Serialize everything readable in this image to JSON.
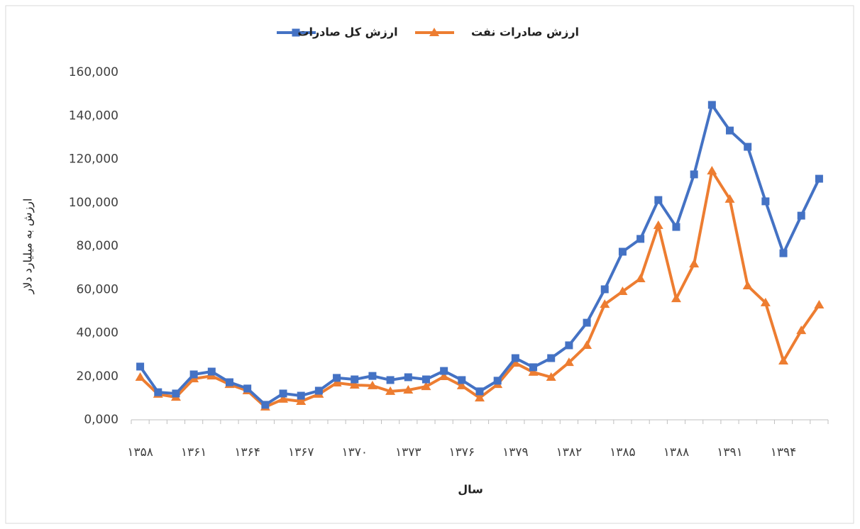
{
  "chart_data": {
    "type": "line",
    "x_label": "سال",
    "y_label": "ارزش به میلیارد دلار",
    "categories": [
      "۱۳۵۸",
      null,
      null,
      "۱۳۶۱",
      null,
      null,
      "۱۳۶۴",
      null,
      null,
      "۱۳۶۷",
      null,
      null,
      "۱۳۷۰",
      null,
      null,
      "۱۳۷۳",
      null,
      null,
      "۱۳۷۶",
      null,
      null,
      "۱۳۷۹",
      null,
      null,
      "۱۳۸۲",
      null,
      null,
      "۱۳۸۵",
      null,
      null,
      "۱۳۸۸",
      null,
      null,
      "۱۳۹۱",
      null,
      null,
      "۱۳۹۴",
      null,
      null
    ],
    "series": [
      {
        "name": "ارزش کل صادرات",
        "color": "#4472c4",
        "marker": "square",
        "values": [
          24500,
          12700,
          12100,
          20900,
          22200,
          17300,
          14400,
          6900,
          12100,
          11100,
          13400,
          19300,
          18600,
          20200,
          18300,
          19600,
          18600,
          22500,
          18300,
          13100,
          18000,
          28400,
          24200,
          28400,
          34300,
          44700,
          60100,
          77400,
          83300,
          101200,
          88800,
          113000,
          145000,
          133200,
          125700,
          100600,
          76700,
          94000,
          111000
        ]
      },
      {
        "name": "ارزش صادرات نفت",
        "color": "#ed7d31",
        "marker": "triangle",
        "values": [
          19600,
          11800,
          10400,
          18900,
          20200,
          16300,
          13400,
          5900,
          9500,
          8500,
          11800,
          17000,
          16000,
          15700,
          13100,
          13700,
          15300,
          19900,
          15700,
          10100,
          16300,
          26100,
          21900,
          19600,
          26400,
          34300,
          53200,
          59100,
          65000,
          89500,
          55800,
          71800,
          114600,
          101600,
          61700,
          53900,
          27100,
          41100,
          52900
        ]
      }
    ],
    "ylim": [
      0,
      160000
    ],
    "yticks": [
      {
        "value": 0,
        "label": "0,000"
      },
      {
        "value": 20000,
        "label": "20,000"
      },
      {
        "value": 40000,
        "label": "40,000"
      },
      {
        "value": 60000,
        "label": "60,000"
      },
      {
        "value": 80000,
        "label": "80,000"
      },
      {
        "value": 100000,
        "label": "100,000"
      },
      {
        "value": 120000,
        "label": "120,000"
      },
      {
        "value": 140000,
        "label": "140,000"
      },
      {
        "value": 160000,
        "label": "160,000"
      }
    ],
    "grid": false,
    "legend": "top"
  }
}
